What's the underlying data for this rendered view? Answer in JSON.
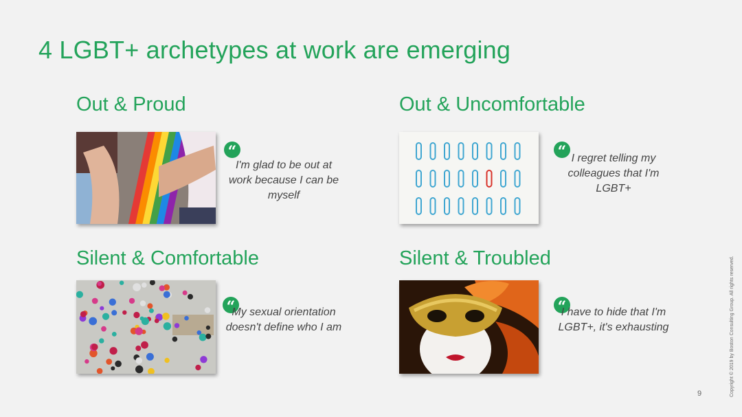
{
  "title": "4 LGBT+ archetypes at work are emerging",
  "archetypes": [
    {
      "heading": "Out & Proud",
      "quote": "I'm glad to be out at work because I can be myself",
      "image": "pride-flags-photo"
    },
    {
      "heading": "Out & Uncomfortable",
      "quote": "I regret telling my colleagues that I'm LGBT+",
      "image": "paperclips-photo"
    },
    {
      "heading": "Silent & Comfortable",
      "quote": "My sexual orientation doesn't define who I am",
      "image": "umbrellas-crowd-photo"
    },
    {
      "heading": "Silent & Troubled",
      "quote": "I have to hide that I'm LGBT+, it's exhausting",
      "image": "venetian-mask-photo"
    }
  ],
  "quote_glyph": "“",
  "page_number": "9",
  "copyright": "Copyright © 2019 by Boston Consulting Group. All rights reserved.",
  "colors": {
    "accent": "#23a35a",
    "background": "#f2f2f2",
    "quote_text": "#444444"
  }
}
